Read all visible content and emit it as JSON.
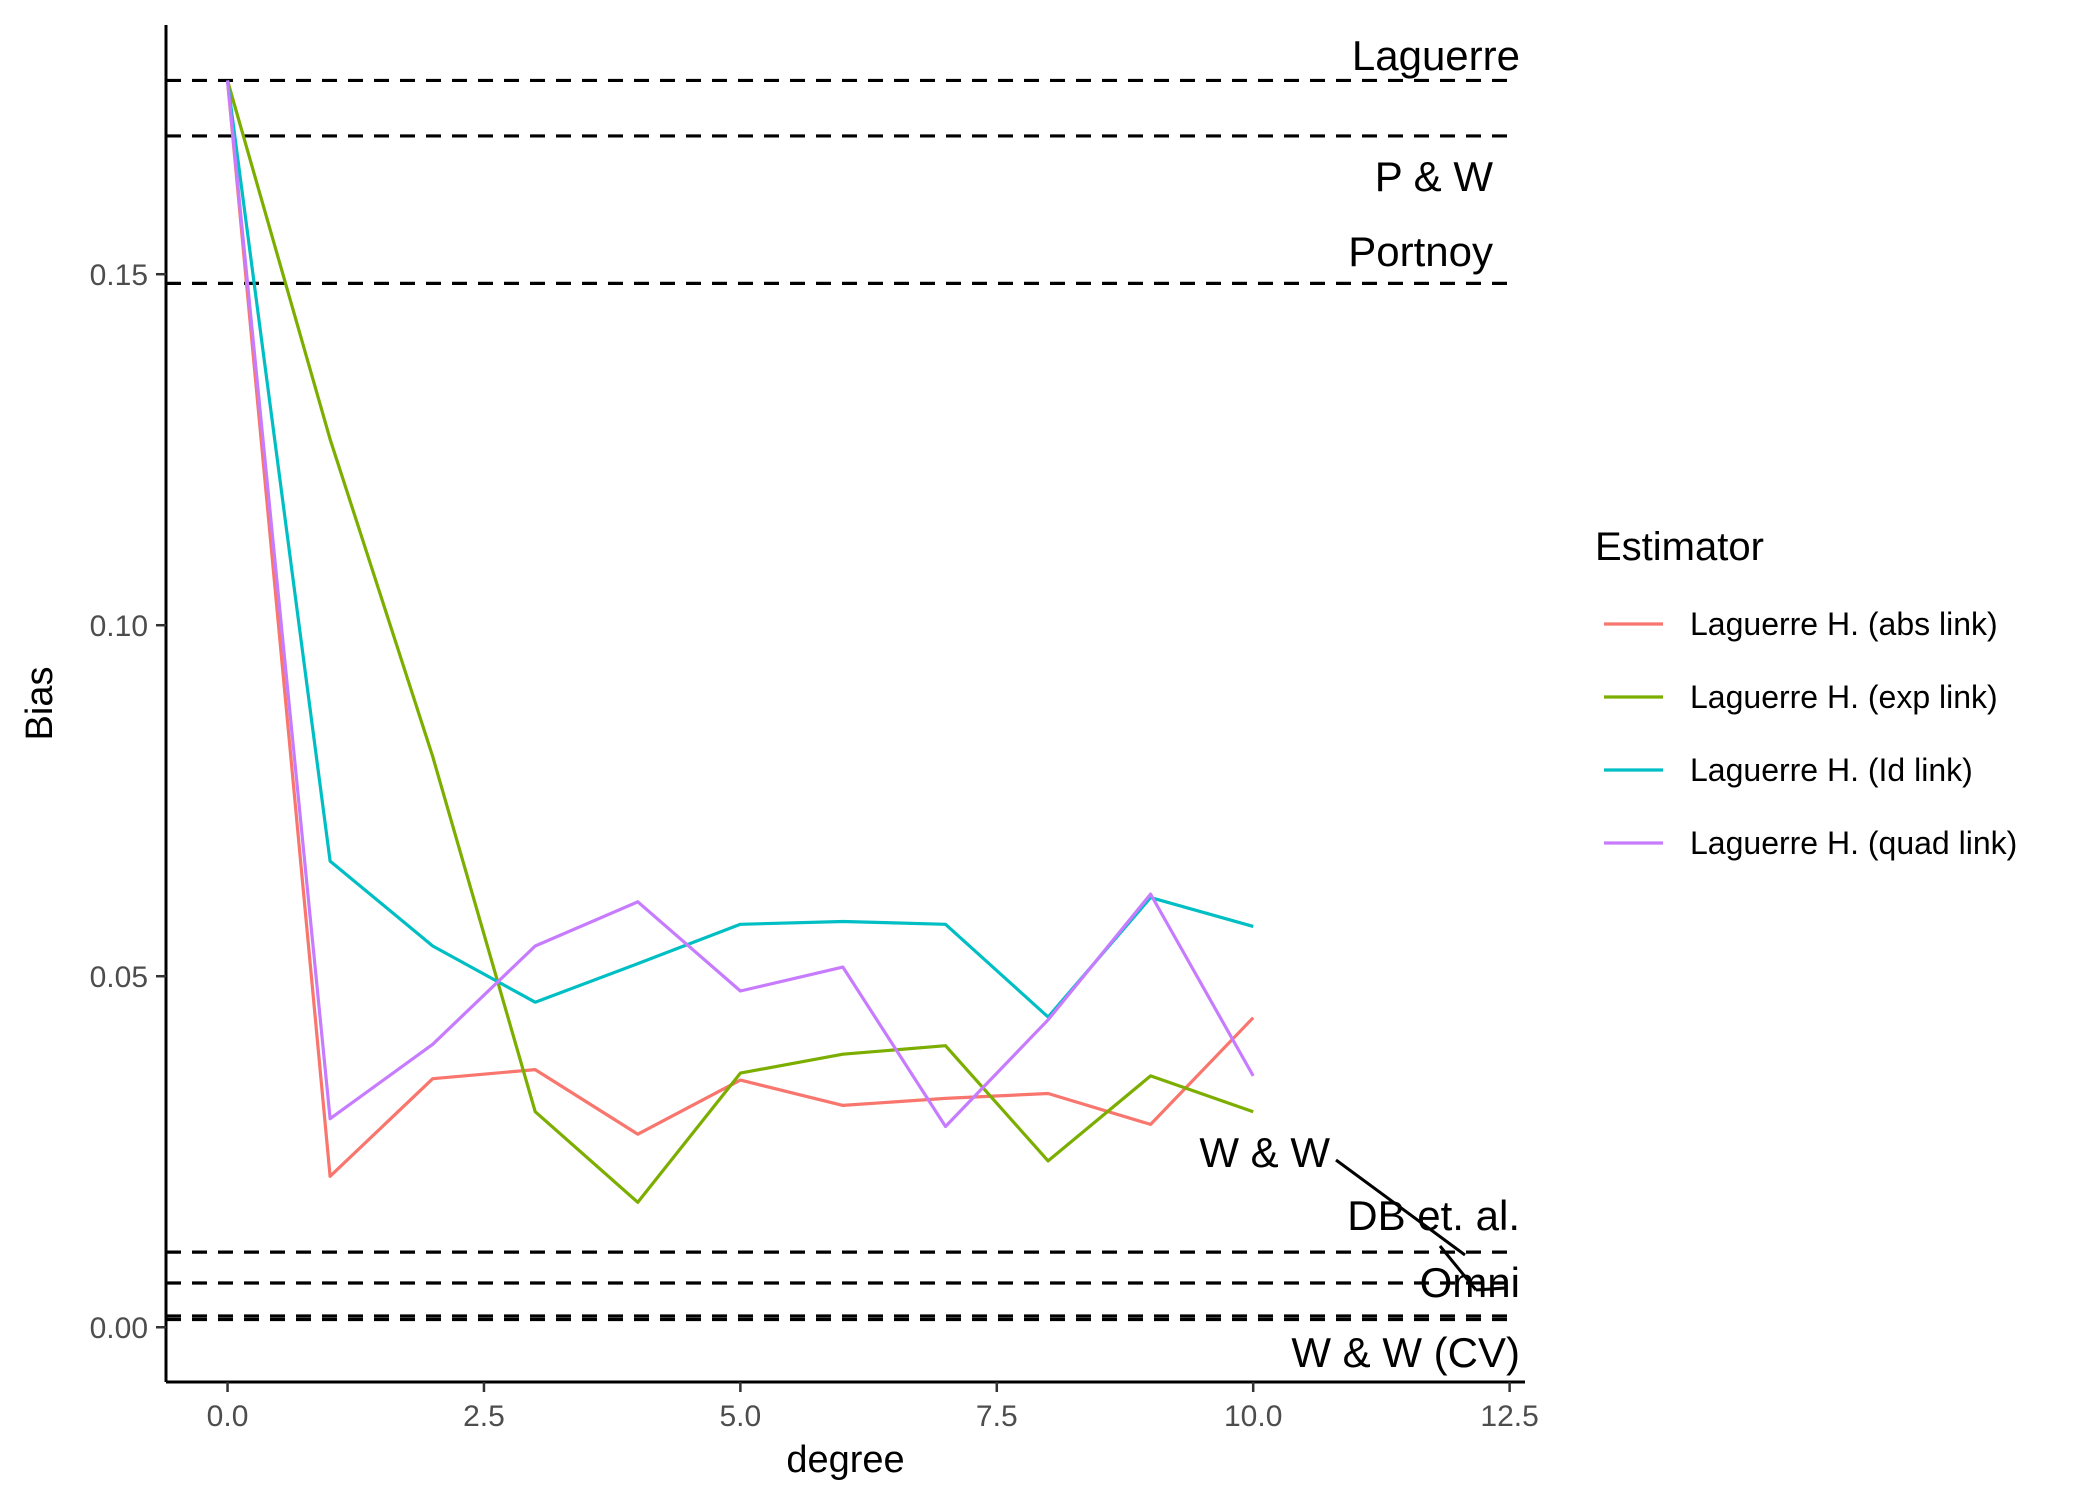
{
  "chart_data": {
    "type": "line",
    "title": "",
    "xlabel": "degree",
    "ylabel": "Bias",
    "xlim": [
      -0.6,
      12.65
    ],
    "ylim": [
      -0.0078,
      0.1855
    ],
    "x_ticks": [
      0.0,
      2.5,
      5.0,
      7.5,
      10.0,
      12.5
    ],
    "x_tick_labels": [
      "0.0",
      "2.5",
      "5.0",
      "7.5",
      "10.0",
      "12.5"
    ],
    "y_ticks": [
      0.0,
      0.05,
      0.1,
      0.15
    ],
    "y_tick_labels": [
      "0.00",
      "0.05",
      "0.10",
      "0.15"
    ],
    "grid": false,
    "legend": {
      "title": "Estimator",
      "position": "right"
    },
    "x": [
      0,
      1,
      2,
      3,
      4,
      5,
      6,
      7,
      8,
      9,
      10
    ],
    "series": [
      {
        "name": "Laguerre H. (abs link)",
        "color": "#F8766D",
        "values": [
          0.1776,
          0.0215,
          0.0354,
          0.0367,
          0.0275,
          0.0352,
          0.0316,
          0.0326,
          0.0333,
          0.0289,
          0.0441
        ]
      },
      {
        "name": "Laguerre H. (exp link)",
        "color": "#7CAE00",
        "values": [
          0.1776,
          0.1265,
          0.0813,
          0.0307,
          0.0178,
          0.0362,
          0.0389,
          0.0401,
          0.0237,
          0.0358,
          0.0307
        ]
      },
      {
        "name": "Laguerre H. (Id link)",
        "color": "#00BFC4",
        "values": [
          0.1776,
          0.0664,
          0.0543,
          0.0463,
          0.0518,
          0.0574,
          0.0578,
          0.0574,
          0.0442,
          0.0612,
          0.0571
        ]
      },
      {
        "name": "Laguerre H. (quad link)",
        "color": "#C77CFF",
        "values": [
          0.1776,
          0.0297,
          0.0403,
          0.0543,
          0.0606,
          0.0479,
          0.0513,
          0.0286,
          0.0438,
          0.0617,
          0.0358
        ]
      }
    ],
    "reference_lines": [
      {
        "name": "Laguerre",
        "value": 0.1776
      },
      {
        "name": "P & W",
        "value": 0.1697
      },
      {
        "name": "Portnoy",
        "value": 0.1487
      },
      {
        "name": "DB et. al.",
        "value": 0.0107
      },
      {
        "name": "Omni",
        "value": 0.0063
      },
      {
        "name": "W & W",
        "value": 0.0016
      },
      {
        "name": "W & W (CV)",
        "value": 0.0011
      }
    ]
  }
}
